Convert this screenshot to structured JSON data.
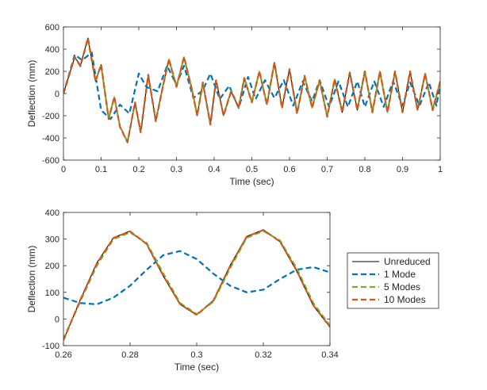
{
  "chart_data": [
    {
      "type": "line",
      "xlabel": "Time (sec)",
      "ylabel": "Deflection (mm)",
      "xlim": [
        0,
        1
      ],
      "ylim": [
        -600,
        600
      ],
      "xticks": [
        0,
        0.1,
        0.2,
        0.3,
        0.4,
        0.5,
        0.6,
        0.7,
        0.8,
        0.9,
        1
      ],
      "xtick_labels": [
        "0",
        "0.1",
        "0.2",
        "0.3",
        "0.4",
        "0.5",
        "0.6",
        "0.7",
        "0.8",
        "0.9",
        "1"
      ],
      "yticks": [
        -600,
        -400,
        -200,
        0,
        200,
        400,
        600
      ],
      "ytick_labels": [
        "-600",
        "-400",
        "-200",
        "0",
        "200",
        "400",
        "600"
      ],
      "grid": false,
      "series": [
        {
          "name": "Unreduced",
          "color": "#000000",
          "style": "solid",
          "x": [
            0,
            0.03,
            0.045,
            0.065,
            0.085,
            0.1,
            0.12,
            0.135,
            0.15,
            0.17,
            0.19,
            0.205,
            0.225,
            0.245,
            0.265,
            0.28,
            0.3,
            0.32,
            0.34,
            0.355,
            0.37,
            0.39,
            0.405,
            0.425,
            0.445,
            0.465,
            0.48,
            0.5,
            0.52,
            0.54,
            0.56,
            0.58,
            0.6,
            0.62,
            0.64,
            0.66,
            0.68,
            0.7,
            0.72,
            0.74,
            0.76,
            0.78,
            0.8,
            0.82,
            0.84,
            0.86,
            0.88,
            0.9,
            0.92,
            0.94,
            0.96,
            0.98,
            1.0
          ],
          "y": [
            0,
            330,
            250,
            500,
            110,
            260,
            -230,
            -30,
            -300,
            -440,
            -80,
            -350,
            170,
            -250,
            80,
            310,
            60,
            330,
            50,
            -200,
            100,
            -280,
            120,
            -200,
            20,
            -130,
            140,
            -80,
            200,
            -100,
            280,
            -130,
            220,
            -180,
            160,
            -130,
            120,
            -210,
            130,
            -170,
            190,
            -150,
            200,
            -170,
            200,
            -170,
            200,
            -170,
            200,
            -150,
            180,
            -150,
            110
          ]
        },
        {
          "name": "1 Mode",
          "color": "#0072BD",
          "style": "dashed",
          "x": [
            0,
            0.03,
            0.05,
            0.075,
            0.1,
            0.125,
            0.15,
            0.175,
            0.2,
            0.22,
            0.25,
            0.275,
            0.3,
            0.32,
            0.345,
            0.37,
            0.39,
            0.415,
            0.44,
            0.465,
            0.49,
            0.51,
            0.535,
            0.56,
            0.585,
            0.61,
            0.635,
            0.66,
            0.68,
            0.705,
            0.73,
            0.755,
            0.78,
            0.8,
            0.825,
            0.85,
            0.875,
            0.9,
            0.92,
            0.945,
            0.97,
            0.99,
            1.0
          ],
          "y": [
            0,
            350,
            300,
            370,
            -150,
            -230,
            -100,
            -180,
            180,
            60,
            20,
            250,
            80,
            250,
            -40,
            30,
            180,
            -50,
            70,
            -130,
            150,
            -50,
            120,
            -40,
            120,
            -110,
            110,
            -70,
            120,
            -120,
            110,
            -120,
            110,
            -120,
            110,
            -120,
            110,
            -110,
            100,
            -110,
            100,
            -110,
            90
          ]
        },
        {
          "name": "5 Modes",
          "color": "#77AC30",
          "style": "dashed",
          "x": [
            0,
            0.03,
            0.045,
            0.065,
            0.085,
            0.1,
            0.12,
            0.135,
            0.15,
            0.17,
            0.19,
            0.205,
            0.225,
            0.245,
            0.265,
            0.28,
            0.3,
            0.32,
            0.34,
            0.355,
            0.37,
            0.39,
            0.405,
            0.425,
            0.445,
            0.465,
            0.48,
            0.5,
            0.52,
            0.54,
            0.56,
            0.58,
            0.6,
            0.62,
            0.64,
            0.66,
            0.68,
            0.7,
            0.72,
            0.74,
            0.76,
            0.78,
            0.8,
            0.82,
            0.84,
            0.86,
            0.88,
            0.9,
            0.92,
            0.94,
            0.96,
            0.98,
            1.0
          ],
          "y": [
            0,
            325,
            245,
            495,
            115,
            255,
            -225,
            -35,
            -295,
            -435,
            -85,
            -345,
            165,
            -245,
            85,
            305,
            65,
            325,
            55,
            -195,
            95,
            -275,
            115,
            -195,
            25,
            -125,
            135,
            -75,
            195,
            -95,
            275,
            -125,
            215,
            -175,
            155,
            -125,
            115,
            -205,
            125,
            -165,
            185,
            -145,
            195,
            -165,
            195,
            -165,
            195,
            -165,
            195,
            -145,
            175,
            -145,
            105
          ]
        },
        {
          "name": "10 Modes",
          "color": "#D95319",
          "style": "dashed",
          "x": [
            0,
            0.03,
            0.045,
            0.065,
            0.085,
            0.1,
            0.12,
            0.135,
            0.15,
            0.17,
            0.19,
            0.205,
            0.225,
            0.245,
            0.265,
            0.28,
            0.3,
            0.32,
            0.34,
            0.355,
            0.37,
            0.39,
            0.405,
            0.425,
            0.445,
            0.465,
            0.48,
            0.5,
            0.52,
            0.54,
            0.56,
            0.58,
            0.6,
            0.62,
            0.64,
            0.66,
            0.68,
            0.7,
            0.72,
            0.74,
            0.76,
            0.78,
            0.8,
            0.82,
            0.84,
            0.86,
            0.88,
            0.9,
            0.92,
            0.94,
            0.96,
            0.98,
            1.0
          ],
          "y": [
            0,
            330,
            250,
            500,
            110,
            260,
            -230,
            -30,
            -300,
            -440,
            -80,
            -350,
            170,
            -250,
            80,
            310,
            60,
            330,
            50,
            -200,
            100,
            -280,
            120,
            -200,
            20,
            -130,
            140,
            -80,
            200,
            -100,
            280,
            -130,
            220,
            -180,
            160,
            -130,
            120,
            -210,
            130,
            -170,
            190,
            -150,
            200,
            -170,
            200,
            -170,
            200,
            -170,
            200,
            -150,
            180,
            -150,
            110
          ]
        }
      ]
    },
    {
      "type": "line",
      "xlabel": "Time (sec)",
      "ylabel": "Deflection (mm)",
      "xlim": [
        0.26,
        0.34
      ],
      "ylim": [
        -100,
        400
      ],
      "xticks": [
        0.26,
        0.28,
        0.3,
        0.32,
        0.34
      ],
      "xtick_labels": [
        "0.26",
        "0.28",
        "0.3",
        "0.32",
        "0.34"
      ],
      "yticks": [
        -100,
        0,
        100,
        200,
        300,
        400
      ],
      "ytick_labels": [
        "-100",
        "0",
        "100",
        "200",
        "300",
        "400"
      ],
      "grid": false,
      "legend": {
        "placement": "outside-right",
        "entries": [
          "Unreduced",
          "1 Mode",
          "5 Modes",
          "10 Modes"
        ]
      },
      "series": [
        {
          "name": "Unreduced",
          "color": "#000000",
          "style": "solid",
          "x": [
            0.26,
            0.265,
            0.27,
            0.275,
            0.28,
            0.285,
            0.29,
            0.295,
            0.3,
            0.305,
            0.31,
            0.315,
            0.32,
            0.325,
            0.33,
            0.335,
            0.34
          ],
          "y": [
            -80,
            70,
            210,
            305,
            330,
            280,
            160,
            55,
            15,
            70,
            200,
            310,
            335,
            290,
            180,
            50,
            -30
          ]
        },
        {
          "name": "1 Mode",
          "color": "#0072BD",
          "style": "dashed",
          "x": [
            0.26,
            0.265,
            0.27,
            0.275,
            0.28,
            0.285,
            0.29,
            0.295,
            0.3,
            0.305,
            0.31,
            0.315,
            0.32,
            0.325,
            0.33,
            0.335,
            0.34
          ],
          "y": [
            80,
            60,
            55,
            80,
            125,
            185,
            240,
            255,
            225,
            170,
            125,
            100,
            110,
            150,
            185,
            195,
            175
          ]
        },
        {
          "name": "5 Modes",
          "color": "#77AC30",
          "style": "dashed",
          "x": [
            0.26,
            0.265,
            0.27,
            0.275,
            0.28,
            0.285,
            0.29,
            0.295,
            0.3,
            0.305,
            0.31,
            0.315,
            0.32,
            0.325,
            0.33,
            0.335,
            0.34
          ],
          "y": [
            -75,
            65,
            200,
            300,
            325,
            285,
            170,
            60,
            18,
            65,
            190,
            305,
            330,
            295,
            190,
            60,
            -25
          ]
        },
        {
          "name": "10 Modes",
          "color": "#D95319",
          "style": "dashed",
          "x": [
            0.26,
            0.265,
            0.27,
            0.275,
            0.28,
            0.285,
            0.29,
            0.295,
            0.3,
            0.305,
            0.31,
            0.315,
            0.32,
            0.325,
            0.33,
            0.335,
            0.34
          ],
          "y": [
            -80,
            70,
            208,
            304,
            329,
            281,
            162,
            56,
            15,
            69,
            198,
            309,
            334,
            291,
            182,
            52,
            -30
          ]
        }
      ]
    }
  ]
}
